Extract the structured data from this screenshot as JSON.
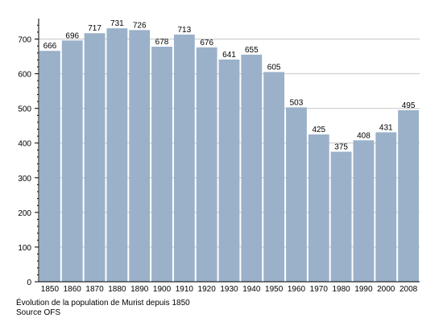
{
  "chart_data": {
    "type": "bar",
    "categories": [
      "1850",
      "1860",
      "1870",
      "1880",
      "1890",
      "1900",
      "1910",
      "1920",
      "1930",
      "1940",
      "1950",
      "1960",
      "1970",
      "1980",
      "1990",
      "2000",
      "2008"
    ],
    "values": [
      666,
      696,
      717,
      731,
      726,
      678,
      713,
      676,
      641,
      655,
      605,
      503,
      425,
      375,
      408,
      431,
      495
    ],
    "ylim": [
      0,
      750
    ],
    "yticks": [
      0,
      100,
      200,
      300,
      400,
      500,
      600,
      700
    ],
    "grid": true,
    "bar_color": "#9ab1c9",
    "grid_color": "#c8c8c8"
  },
  "captions": {
    "line1": "Évolution de la population de Murist depuis 1850",
    "line2": "Source OFS"
  }
}
